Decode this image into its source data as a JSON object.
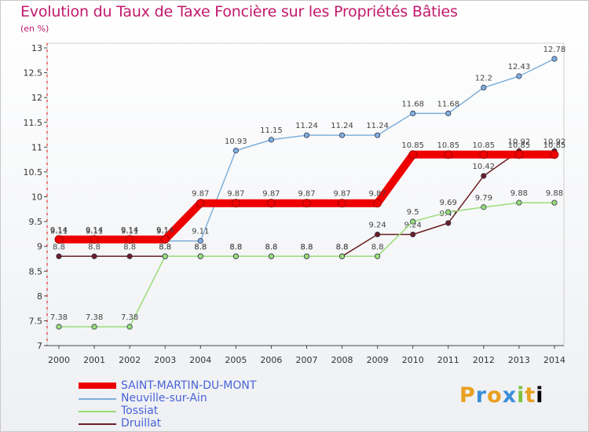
{
  "chart_data": {
    "type": "line",
    "title": "Evolution du Taux de Taxe Foncière sur les Propriétés Bâties",
    "unit": "(en %)",
    "x": [
      "2000",
      "2001",
      "2002",
      "2003",
      "2004",
      "2005",
      "2006",
      "2007",
      "2008",
      "2009",
      "2010",
      "2011",
      "2012",
      "2013",
      "2014"
    ],
    "ylim": [
      7,
      13
    ],
    "yticks": [
      "7",
      "7.5",
      "8",
      "8.5",
      "9",
      "9.5",
      "10",
      "10.5",
      "11",
      "11.5",
      "12",
      "12.5",
      "13"
    ],
    "series": [
      {
        "name": "Druillat",
        "color": "#6b1f23",
        "values": [
          8.8,
          8.8,
          8.8,
          8.8,
          8.8,
          8.8,
          8.8,
          8.8,
          8.8,
          9.24,
          9.24,
          9.47,
          10.42,
          10.92,
          10.92
        ]
      },
      {
        "name": "Tossiat",
        "color": "#99dd77",
        "values": [
          7.38,
          7.38,
          7.38,
          8.8,
          8.8,
          8.8,
          8.8,
          8.8,
          8.8,
          8.8,
          9.5,
          9.69,
          9.79,
          9.88,
          9.88
        ]
      },
      {
        "name": "Neuville-sur-Ain",
        "color": "#7fb0dc",
        "values": [
          9.11,
          9.11,
          9.11,
          9.11,
          9.11,
          10.93,
          11.15,
          11.24,
          11.24,
          11.24,
          11.68,
          11.68,
          12.2,
          12.43,
          12.78
        ]
      },
      {
        "name": "SAINT-MARTIN-DU-MONT",
        "color": "#ee0000",
        "values": [
          9.14,
          9.14,
          9.14,
          9.14,
          9.87,
          9.87,
          9.87,
          9.87,
          9.87,
          9.87,
          10.85,
          10.85,
          10.85,
          10.85,
          10.85
        ]
      }
    ],
    "legend_order": [
      "SAINT-MARTIN-DU-MONT",
      "Neuville-sur-Ain",
      "Tossiat",
      "Druillat"
    ]
  },
  "logo": {
    "letters": [
      "P",
      "r",
      "o",
      "x",
      "i",
      "t",
      "i"
    ]
  }
}
